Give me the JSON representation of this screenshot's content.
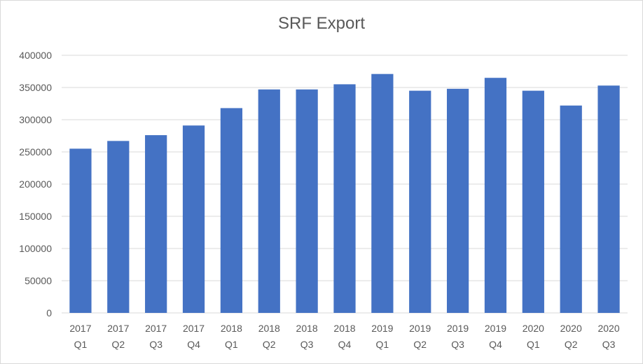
{
  "chart_data": {
    "type": "bar",
    "title": "SRF Export",
    "xlabel": "",
    "ylabel": "",
    "categories": [
      [
        "2017",
        "Q1"
      ],
      [
        "2017",
        "Q2"
      ],
      [
        "2017",
        "Q3"
      ],
      [
        "2017",
        "Q4"
      ],
      [
        "2018",
        "Q1"
      ],
      [
        "2018",
        "Q2"
      ],
      [
        "2018",
        "Q3"
      ],
      [
        "2018",
        "Q4"
      ],
      [
        "2019",
        "Q1"
      ],
      [
        "2019",
        "Q2"
      ],
      [
        "2019",
        "Q3"
      ],
      [
        "2019",
        "Q4"
      ],
      [
        "2020",
        "Q1"
      ],
      [
        "2020",
        "Q2"
      ],
      [
        "2020",
        "Q3"
      ]
    ],
    "values": [
      255000,
      267000,
      276000,
      291000,
      318000,
      347000,
      347000,
      355000,
      371000,
      345000,
      348000,
      365000,
      345000,
      322000,
      353000
    ],
    "ylim": [
      0,
      400000
    ],
    "yticks": [
      "0",
      "50000",
      "100000",
      "150000",
      "200000",
      "250000",
      "300000",
      "350000",
      "400000"
    ],
    "grid": true,
    "legend": "none",
    "colors": {
      "bar": "#4472c4",
      "grid": "#d9d9d9",
      "text": "#595959"
    }
  }
}
